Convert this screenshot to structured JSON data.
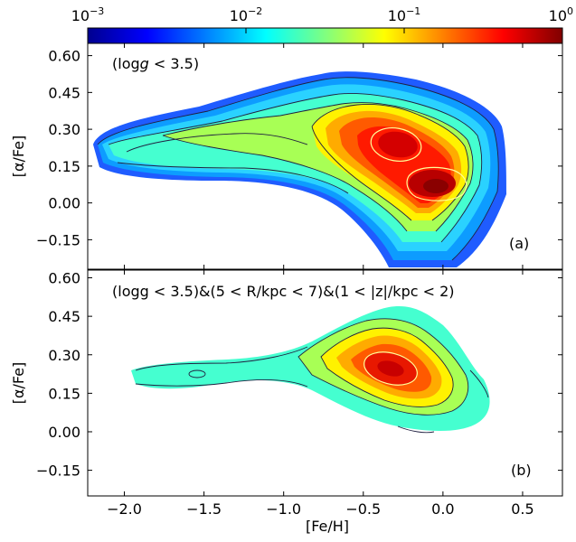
{
  "colormap": "jet",
  "colorbar": {
    "scale": "log",
    "range": [
      0.001,
      1
    ],
    "tick_labels": [
      "10",
      "10",
      "10",
      "10"
    ],
    "tick_exponents": [
      "−3",
      "−2",
      "−1",
      "0"
    ],
    "tick_values": [
      0.001,
      0.01,
      0.1,
      1
    ],
    "placement": "top"
  },
  "chart_data": [
    {
      "type": "heatmap",
      "panel": "a",
      "panel_label": "(a)",
      "annotation": {
        "prefix": "(log",
        "g": "g",
        "suffix": " < 3.5)"
      },
      "xlabel": "",
      "ylabel": "[α/Fe]",
      "xlim": [
        -2.23,
        0.75
      ],
      "ylim": [
        -0.27,
        0.65
      ],
      "y_ticks": [
        0.6,
        0.45,
        0.3,
        0.15,
        0.0,
        -0.15
      ],
      "y_tick_labels": [
        "0.60",
        "0.45",
        "0.30",
        "0.15",
        "0.00",
        "−0.15"
      ],
      "density_peaks": [
        {
          "feh": -0.31,
          "alpha_fe": 0.25,
          "density": 0.55
        },
        {
          "feh": -0.09,
          "alpha_fe": 0.11,
          "density": 0.75
        }
      ],
      "contour_levels": [
        0.002,
        0.005,
        0.012,
        0.025,
        0.05,
        0.1,
        0.2
      ]
    },
    {
      "type": "heatmap",
      "panel": "b",
      "panel_label": "(b)",
      "annotation": {
        "text": "(logg < 3.5)&(5 < R/kpc < 7)&(1 < |z|/kpc < 2)"
      },
      "xlabel": "[Fe/H]",
      "ylabel": "[α/Fe]",
      "xlim": [
        -2.23,
        0.75
      ],
      "ylim": [
        -0.25,
        0.63
      ],
      "x_ticks": [
        -2.0,
        -1.5,
        -1.0,
        -0.5,
        0.0,
        0.5
      ],
      "x_tick_labels": [
        "−2.0",
        "−1.5",
        "−1.0",
        "−0.5",
        "0.0",
        "0.5"
      ],
      "y_ticks": [
        0.6,
        0.45,
        0.3,
        0.15,
        0.0,
        -0.15
      ],
      "y_tick_labels": [
        "0.60",
        "0.45",
        "0.30",
        "0.15",
        "0.00",
        "−0.15"
      ],
      "density_peaks": [
        {
          "feh": -0.36,
          "alpha_fe": 0.25,
          "density": 0.5
        }
      ],
      "contour_levels": [
        0.02,
        0.05,
        0.1,
        0.2
      ]
    }
  ]
}
